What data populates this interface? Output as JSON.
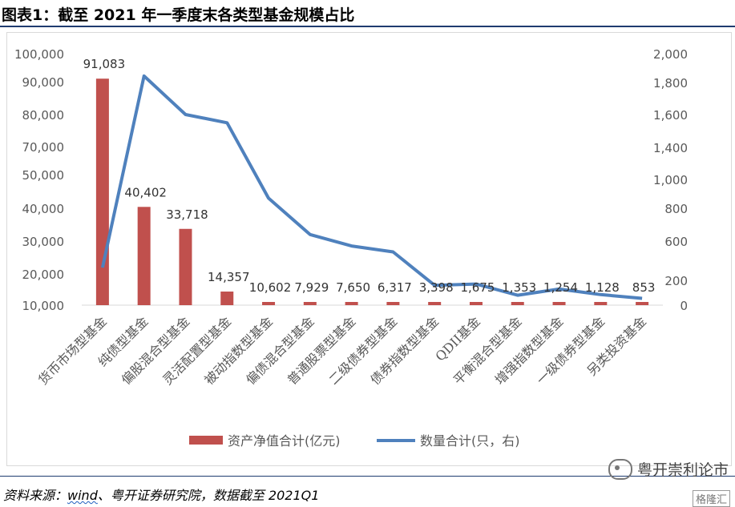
{
  "title": "图表1：截至 2021 年一季度末各类型基金规模占比",
  "source": {
    "prefix": "资料来源：",
    "wind": "wind",
    "rest": "、粤开证券研究院，数据截至  2021Q1"
  },
  "watermark": {
    "text": "粤开崇利论市",
    "small": "格隆汇"
  },
  "colors": {
    "bar": "#c0504d",
    "line": "#4f81bd",
    "text": "#595959"
  },
  "chart_data": {
    "type": "bar",
    "categories": [
      "货币市场型基金",
      "纯债型基金",
      "偏股混合型基金",
      "灵活配置型基金",
      "被动指数型基金",
      "偏债混合型基金",
      "普通股票型基金",
      "二级债券型基金",
      "债券指数型基金",
      "QDII基金",
      "平衡混合型基金",
      "增强指数型基金",
      "一级债券型基金",
      "另类投资基金"
    ],
    "series": [
      {
        "name": "资产净值合计(亿元)",
        "axis": "left",
        "kind": "bar",
        "values": [
          91083,
          40402,
          33718,
          14357,
          10602,
          7929,
          7650,
          6317,
          3398,
          1675,
          1353,
          1254,
          1128,
          853
        ],
        "labels": [
          "91,083",
          "40,402",
          "33,718",
          "14,357",
          "10,602",
          "7,929",
          "7,650",
          "6,317",
          "3,398",
          "1,675",
          "1,353",
          "1,254",
          "1,128",
          "853"
        ]
      },
      {
        "name": "数量合计(只，右)",
        "axis": "right",
        "kind": "line",
        "values": [
          330,
          1845,
          1600,
          1550,
          870,
          640,
          550,
          490,
          160,
          170,
          80,
          130,
          85,
          55
        ]
      }
    ],
    "left_axis": {
      "ticks": [
        10000,
        20000,
        30000,
        40000,
        50000,
        70000,
        80000,
        90000,
        100000
      ],
      "labels": [
        "10,000",
        "20,000",
        "30,000",
        "40,000",
        "50,000",
        "70,000",
        "80,000",
        "90,000",
        "100,000"
      ]
    },
    "right_axis": {
      "ticks": [
        0,
        200,
        600,
        800,
        1000,
        1400,
        1600,
        1800,
        2000
      ],
      "labels": [
        "0",
        "200",
        "600",
        "800",
        "1,000",
        "1,400",
        "1,600",
        "1,800",
        "2,000"
      ]
    },
    "grid": false,
    "legend": "bottom"
  }
}
